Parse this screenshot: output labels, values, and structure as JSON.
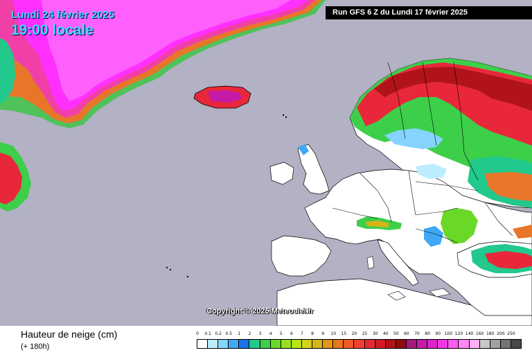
{
  "header": {
    "date": "Lundi 24 février 2025",
    "time": "19:00 locale",
    "run": "Run GFS 6 Z du Lundi 17 février 2025"
  },
  "map": {
    "copyright": "Copyright © 2025 Meteociel.fr",
    "sea_color": "#b3b1c4",
    "land_color": "#ffffff"
  },
  "footer": {
    "variable": "Hauteur de neige (cm)",
    "lead": "(+ 180h)"
  },
  "legend": {
    "labels": [
      "0",
      "0.1",
      "0.2",
      "0.5",
      "1",
      "2",
      "3",
      "4",
      "5",
      "6",
      "7",
      "8",
      "9",
      "10",
      "15",
      "20",
      "25",
      "30",
      "40",
      "50",
      "60",
      "70",
      "80",
      "90",
      "100",
      "120",
      "140",
      "160",
      "180",
      "200",
      "250"
    ],
    "colors": [
      "#ffffff",
      "#bcecff",
      "#84d4ff",
      "#3fa9f5",
      "#1a74e8",
      "#22c88c",
      "#3ecf4a",
      "#6ad826",
      "#96e01c",
      "#b8e21a",
      "#d4d31a",
      "#d6b416",
      "#e0941a",
      "#e8761e",
      "#f0582a",
      "#f04030",
      "#e8283a",
      "#d01a28",
      "#b01418",
      "#8c0c10",
      "#a8187c",
      "#c41aa8",
      "#dc24c8",
      "#ef38e4",
      "#ff5cf4",
      "#ff86f4",
      "#ffb0f6",
      "#c8c8c8",
      "#a0a0a0",
      "#747474",
      "#484848"
    ]
  }
}
